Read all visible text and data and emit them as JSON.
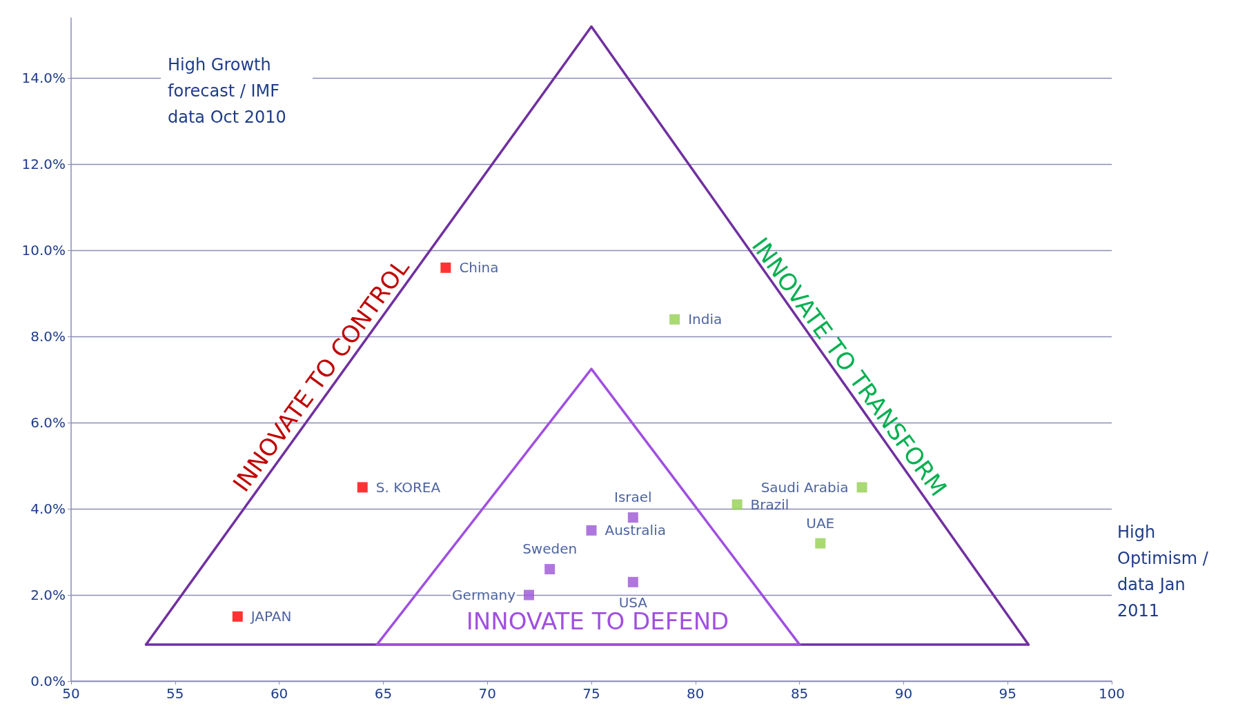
{
  "chart_data": {
    "type": "scatter",
    "ylabel": "High Growth forecast / IMF data Oct 2010",
    "xlabel": "High Optimism / data Jan 2011",
    "xlim": [
      50,
      100
    ],
    "xticks": [
      50,
      55,
      60,
      65,
      70,
      75,
      80,
      85,
      90,
      95,
      100
    ],
    "ylim": [
      0,
      15.4
    ],
    "yticks": [
      {
        "value": 0,
        "label": "0.0%"
      },
      {
        "value": 2,
        "label": "2.0%"
      },
      {
        "value": 4,
        "label": "4.0%"
      },
      {
        "value": 6,
        "label": "6.0%"
      },
      {
        "value": 8,
        "label": "8.0%"
      },
      {
        "value": 10,
        "label": "10.0%"
      },
      {
        "value": 12,
        "label": "12.0%"
      },
      {
        "value": 14,
        "label": "14.0%"
      }
    ],
    "grid": "y",
    "legend": false,
    "marker": "square",
    "series": [
      {
        "type": "line",
        "marker": "none",
        "line_style": "solid",
        "color": "#7030a0",
        "x": [
          53.6,
          75,
          96
        ],
        "values": [
          0.85,
          15.2,
          0.85
        ]
      },
      {
        "type": "line",
        "marker": "none",
        "line_style": "solid",
        "color": "#7030a0",
        "x": [
          53.6,
          96
        ],
        "values": [
          0.85,
          0.85
        ]
      },
      {
        "type": "line",
        "marker": "none",
        "line_style": "solid",
        "color": "#a050e0",
        "x": [
          64.7,
          75,
          85
        ],
        "values": [
          0.85,
          7.25,
          0.85
        ]
      },
      {
        "type": "line",
        "marker": "none",
        "line_style": "solid",
        "color": "#a050e0",
        "x": [
          64.7,
          85
        ],
        "values": [
          0.85,
          0.85
        ]
      },
      {
        "name": "China",
        "color": "#ff0000",
        "x": [
          68
        ],
        "values": [
          9.6
        ]
      },
      {
        "name": "India",
        "color": "#92d050",
        "x": [
          79
        ],
        "values": [
          8.4
        ]
      },
      {
        "name": "S. KOREA",
        "color": "#ff0000",
        "x": [
          64
        ],
        "values": [
          4.5
        ]
      },
      {
        "name": "JAPAN",
        "color": "#ff0000",
        "x": [
          58
        ],
        "values": [
          1.5
        ]
      },
      {
        "name": "Saudi Arabia",
        "color": "#92d050",
        "x": [
          88
        ],
        "values": [
          4.5
        ]
      },
      {
        "name": "Brazil",
        "color": "#92d050",
        "x": [
          82
        ],
        "values": [
          4.1
        ]
      },
      {
        "name": "UAE",
        "color": "#92d050",
        "x": [
          86
        ],
        "values": [
          3.2
        ]
      },
      {
        "name": "Israel",
        "color": "#9b55d5",
        "x": [
          77
        ],
        "values": [
          3.8
        ]
      },
      {
        "name": "Australia",
        "color": "#9b55d5",
        "x": [
          75
        ],
        "values": [
          3.5
        ]
      },
      {
        "name": "Sweden",
        "color": "#9b55d5",
        "x": [
          73
        ],
        "values": [
          2.6
        ]
      },
      {
        "name": "Germany",
        "color": "#9b55d5",
        "x": [
          72
        ],
        "values": [
          2.0
        ]
      },
      {
        "name": "USA",
        "color": "#9b55d5",
        "x": [
          77
        ],
        "values": [
          2.3
        ]
      }
    ],
    "annotations": [
      "INNOVATE TO CONTROL",
      "INNOVATE TO TRANSFORM",
      "INNOVATE TO DEFEND"
    ]
  }
}
